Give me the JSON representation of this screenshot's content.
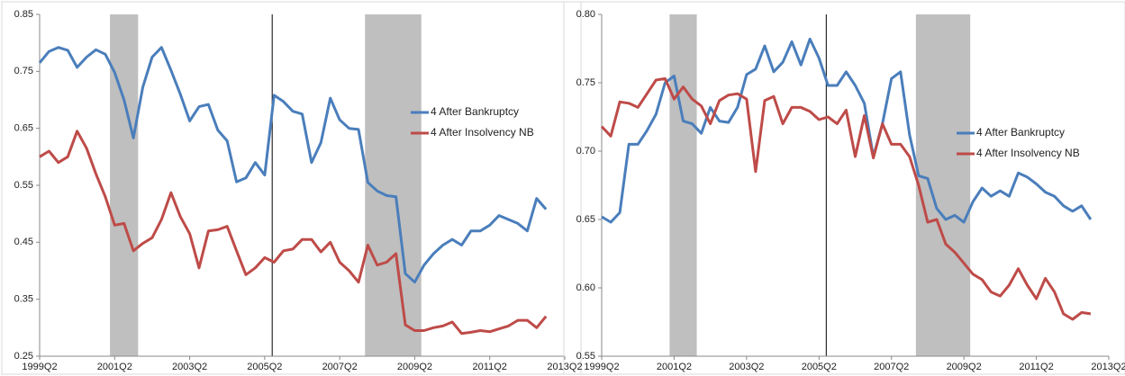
{
  "chart_data": [
    {
      "type": "line",
      "categories": [
        "1999Q2",
        null,
        null,
        null,
        null,
        null,
        null,
        null,
        "2001Q2",
        null,
        null,
        null,
        null,
        null,
        null,
        null,
        "2003Q2",
        null,
        null,
        null,
        null,
        null,
        null,
        null,
        "2005Q2",
        null,
        null,
        null,
        null,
        null,
        null,
        null,
        "2007Q2",
        null,
        null,
        null,
        null,
        null,
        null,
        null,
        "2009Q2",
        null,
        null,
        null,
        null,
        null,
        null,
        null,
        "2011Q2",
        null,
        null,
        null,
        null,
        null,
        null,
        null,
        "2013Q2"
      ],
      "series": [
        {
          "name": "4 After Bankruptcy",
          "color": "#4a7ebb",
          "values": [
            0.765,
            0.785,
            0.792,
            0.787,
            0.757,
            0.775,
            0.788,
            0.78,
            0.748,
            0.7,
            0.633,
            0.722,
            0.775,
            0.792,
            0.752,
            0.71,
            0.663,
            0.688,
            0.692,
            0.647,
            0.628,
            0.556,
            0.563,
            0.59,
            0.568,
            0.708,
            0.697,
            0.68,
            0.675,
            0.59,
            0.625,
            0.703,
            0.665,
            0.65,
            0.648,
            0.555,
            0.54,
            0.532,
            0.53,
            0.395,
            0.38,
            0.41,
            0.43,
            0.445,
            0.455,
            0.445,
            0.47,
            0.47,
            0.48,
            0.497,
            0.49,
            0.483,
            0.47,
            0.527,
            0.508,
            null,
            null
          ]
        },
        {
          "name": "4 After Insolvency NB",
          "color": "#be4b48",
          "values": [
            0.6,
            0.61,
            0.59,
            0.6,
            0.645,
            0.615,
            0.57,
            0.53,
            0.48,
            0.483,
            0.435,
            0.448,
            0.458,
            0.49,
            0.537,
            0.495,
            0.465,
            0.405,
            0.47,
            0.472,
            0.478,
            0.435,
            0.393,
            0.405,
            0.423,
            0.415,
            0.435,
            0.438,
            0.455,
            0.455,
            0.433,
            0.45,
            0.415,
            0.4,
            0.38,
            0.445,
            0.41,
            0.415,
            0.43,
            0.305,
            0.295,
            0.295,
            0.3,
            0.303,
            0.31,
            0.29,
            0.292,
            0.295,
            0.293,
            0.298,
            0.303,
            0.313,
            0.313,
            0.3,
            0.32,
            null,
            null
          ]
        }
      ],
      "ylim": [
        0.25,
        0.85
      ],
      "yticks": [
        0.25,
        0.35,
        0.45,
        0.55,
        0.65,
        0.75,
        0.85
      ],
      "shaded": [
        [
          7.5,
          10.5
        ],
        [
          34.7,
          40.7
        ]
      ],
      "vline": 24.8,
      "legend": "right"
    },
    {
      "type": "line",
      "categories": [
        "1999Q2",
        null,
        null,
        null,
        null,
        null,
        null,
        null,
        "2001Q2",
        null,
        null,
        null,
        null,
        null,
        null,
        null,
        "2003Q2",
        null,
        null,
        null,
        null,
        null,
        null,
        null,
        "2005Q2",
        null,
        null,
        null,
        null,
        null,
        null,
        null,
        "2007Q2",
        null,
        null,
        null,
        null,
        null,
        null,
        null,
        "2009Q2",
        null,
        null,
        null,
        null,
        null,
        null,
        null,
        "2011Q2",
        null,
        null,
        null,
        null,
        null,
        null,
        null,
        "2013Q2"
      ],
      "series": [
        {
          "name": "4 After Bankruptcy",
          "color": "#4a7ebb",
          "values": [
            0.652,
            0.648,
            0.655,
            0.705,
            0.705,
            0.715,
            0.727,
            0.75,
            0.755,
            0.722,
            0.72,
            0.713,
            0.732,
            0.722,
            0.721,
            0.732,
            0.756,
            0.76,
            0.777,
            0.758,
            0.765,
            0.78,
            0.763,
            0.782,
            0.768,
            0.748,
            0.748,
            0.758,
            0.748,
            0.735,
            0.696,
            0.72,
            0.753,
            0.758,
            0.712,
            0.682,
            0.68,
            0.658,
            0.65,
            0.653,
            0.648,
            0.663,
            0.673,
            0.667,
            0.671,
            0.667,
            0.684,
            0.681,
            0.676,
            0.67,
            0.667,
            0.66,
            0.656,
            0.66,
            0.65,
            null,
            null
          ]
        },
        {
          "name": "4 After Insolvency NB",
          "color": "#be4b48",
          "values": [
            0.718,
            0.711,
            0.736,
            0.735,
            0.732,
            0.742,
            0.752,
            0.753,
            0.738,
            0.747,
            0.738,
            0.733,
            0.72,
            0.737,
            0.741,
            0.742,
            0.738,
            0.685,
            0.737,
            0.74,
            0.72,
            0.732,
            0.732,
            0.729,
            0.723,
            0.725,
            0.72,
            0.73,
            0.696,
            0.726,
            0.695,
            0.72,
            0.705,
            0.705,
            0.696,
            0.675,
            0.648,
            0.65,
            0.632,
            0.626,
            0.618,
            0.61,
            0.606,
            0.597,
            0.594,
            0.602,
            0.614,
            0.602,
            0.592,
            0.607,
            0.597,
            0.581,
            0.577,
            0.582,
            0.581,
            null,
            null
          ]
        }
      ],
      "ylim": [
        0.55,
        0.8
      ],
      "yticks": [
        0.55,
        {
          "value": 0.6,
          "label": "0.60"
        },
        0.65,
        {
          "value": 0.7,
          "label": "0.70"
        },
        0.75,
        {
          "value": 0.8,
          "label": "0.80"
        }
      ],
      "shaded": [
        [
          7.5,
          10.5
        ],
        [
          34.7,
          40.7
        ]
      ],
      "vline": 24.8,
      "legend": "right"
    }
  ]
}
